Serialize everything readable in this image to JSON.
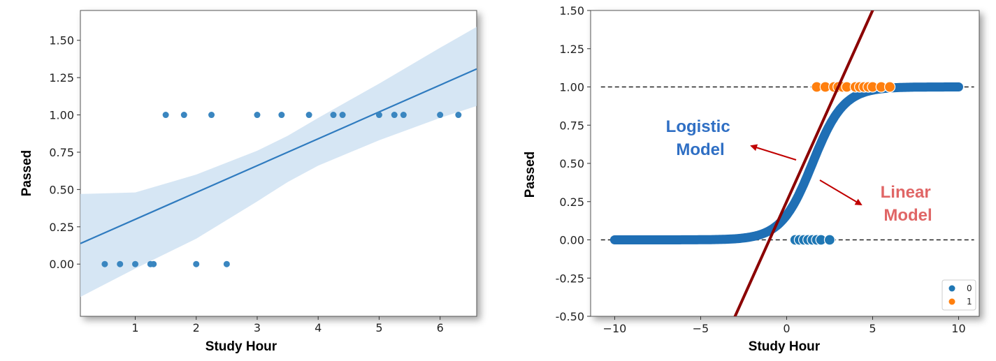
{
  "chart_data": [
    {
      "type": "scatter",
      "xlabel": "Study Hour",
      "ylabel": "Passed",
      "xlim": [
        0.1,
        6.6
      ],
      "ylim": [
        -0.35,
        1.7
      ],
      "xticks": [
        "1",
        "2",
        "3",
        "4",
        "5",
        "6"
      ],
      "yticks": [
        "0.00",
        "0.25",
        "0.50",
        "0.75",
        "1.00",
        "1.25",
        "1.50"
      ],
      "points": [
        [
          0.5,
          0
        ],
        [
          0.75,
          0
        ],
        [
          1.0,
          0
        ],
        [
          1.25,
          0
        ],
        [
          1.3,
          0
        ],
        [
          2.0,
          0
        ],
        [
          2.5,
          0
        ],
        [
          1.5,
          1
        ],
        [
          1.8,
          1
        ],
        [
          2.25,
          1
        ],
        [
          3.0,
          1
        ],
        [
          3.4,
          1
        ],
        [
          3.85,
          1
        ],
        [
          4.25,
          1
        ],
        [
          4.4,
          1
        ],
        [
          5.0,
          1
        ],
        [
          5.25,
          1
        ],
        [
          5.4,
          1
        ],
        [
          6.0,
          1
        ],
        [
          6.3,
          1
        ]
      ],
      "regression": {
        "slope": 0.18,
        "intercept": 0.12
      },
      "ci": {
        "x": [
          0.1,
          1.0,
          2.0,
          3.0,
          3.5,
          4.0,
          5.0,
          6.0,
          6.6
        ],
        "lower": [
          -0.22,
          -0.03,
          0.17,
          0.42,
          0.55,
          0.66,
          0.83,
          0.98,
          1.06
        ],
        "upper": [
          0.47,
          0.48,
          0.6,
          0.76,
          0.86,
          0.98,
          1.21,
          1.45,
          1.59
        ]
      },
      "colors": {
        "points": "#3a86c0",
        "line": "#2f7bbf",
        "band": "#cfe2f2"
      }
    },
    {
      "type": "line",
      "xlabel": "Study Hour",
      "ylabel": "Passed",
      "xlim": [
        -11.4,
        11.2
      ],
      "ylim": [
        -0.5,
        1.5
      ],
      "xticks": [
        "−10",
        "−5",
        "0",
        "5",
        "10"
      ],
      "yticks": [
        "-0.50",
        "-0.25",
        "0.00",
        "0.25",
        "0.50",
        "0.75",
        "1.00",
        "1.25",
        "1.50"
      ],
      "series": [
        {
          "name": "0",
          "points": [
            [
              0.5,
              0
            ],
            [
              0.75,
              0
            ],
            [
              1.0,
              0
            ],
            [
              1.25,
              0
            ],
            [
              1.5,
              0
            ],
            [
              1.75,
              0
            ],
            [
              2.0,
              0
            ],
            [
              2.5,
              0
            ]
          ],
          "color": "#1f77b4"
        },
        {
          "name": "1",
          "points": [
            [
              1.75,
              1
            ],
            [
              2.25,
              1
            ],
            [
              2.75,
              1
            ],
            [
              3.0,
              1
            ],
            [
              3.25,
              1
            ],
            [
              3.5,
              1
            ],
            [
              4.0,
              1
            ],
            [
              4.25,
              1
            ],
            [
              4.5,
              1
            ],
            [
              4.75,
              1
            ],
            [
              5.0,
              1
            ],
            [
              5.5,
              1
            ],
            [
              6.0,
              1
            ]
          ],
          "color": "#ff7f0e"
        }
      ],
      "logistic": {
        "x_start": -10,
        "x_end": 10,
        "midpoint": 1.5,
        "k": 1.1,
        "color": "#1f6fb5"
      },
      "linear": {
        "slope": 0.25,
        "intercept": 0.25,
        "color": "#8b0000"
      },
      "reference_lines": [
        0,
        1
      ],
      "annotations": [
        {
          "lines": [
            "Logistic",
            "Model"
          ],
          "color": "#2f6fc4"
        },
        {
          "lines": [
            "Linear",
            "Model"
          ],
          "color": "#e06666"
        }
      ],
      "legend": {
        "position": "bottom-right",
        "entries": [
          "0",
          "1"
        ]
      }
    }
  ]
}
